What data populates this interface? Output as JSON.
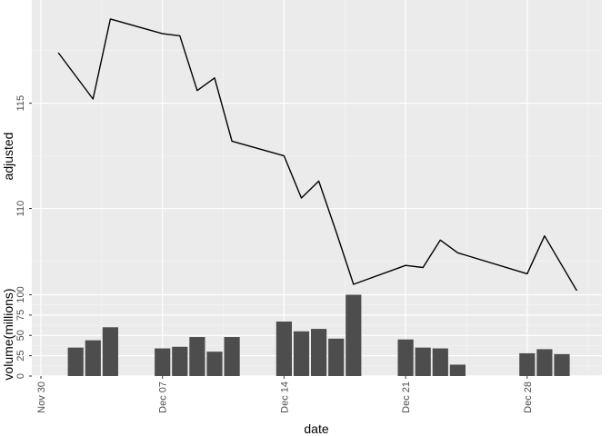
{
  "chart_data": [
    {
      "type": "line",
      "xlabel": "",
      "ylabel": "adjusted",
      "xlim": [
        "2020-11-30",
        "2020-12-31"
      ],
      "ylim": [
        106.1,
        119.9
      ],
      "yticks": [
        110,
        115
      ],
      "series": [
        {
          "x": [
            "2020-12-01",
            "2020-12-03",
            "2020-12-04",
            "2020-12-07",
            "2020-12-08",
            "2020-12-09",
            "2020-12-10",
            "2020-12-11",
            "2020-12-14",
            "2020-12-15",
            "2020-12-16",
            "2020-12-17",
            "2020-12-18",
            "2020-12-21",
            "2020-12-22",
            "2020-12-23",
            "2020-12-24",
            "2020-12-28",
            "2020-12-29",
            "2020-12-30",
            "2020-12-31"
          ],
          "y": [
            117.4,
            115.2,
            119.0,
            118.3,
            118.2,
            115.6,
            116.2,
            113.2,
            112.5,
            110.5,
            111.3,
            108.9,
            106.4,
            107.3,
            107.2,
            108.5,
            107.9,
            106.9,
            108.7,
            107.3,
            105.9
          ]
        }
      ],
      "grid": true,
      "line_color": "#000000"
    },
    {
      "type": "bar",
      "xlabel": "date",
      "ylabel": "volume(millions)",
      "xlim": [
        "2020-11-30",
        "2020-12-31"
      ],
      "ylim": [
        0,
        105
      ],
      "yticks": [
        0,
        25,
        50,
        75,
        100
      ],
      "xticks": [
        {
          "date": "2020-11-30",
          "label": "Nov 30"
        },
        {
          "date": "2020-12-07",
          "label": "Dec 07"
        },
        {
          "date": "2020-12-14",
          "label": "Dec 14"
        },
        {
          "date": "2020-12-21",
          "label": "Dec 21"
        },
        {
          "date": "2020-12-28",
          "label": "Dec 28"
        }
      ],
      "x": [
        "2020-12-02",
        "2020-12-03",
        "2020-12-04",
        "2020-12-07",
        "2020-12-08",
        "2020-12-09",
        "2020-12-10",
        "2020-12-11",
        "2020-12-14",
        "2020-12-15",
        "2020-12-16",
        "2020-12-17",
        "2020-12-18",
        "2020-12-21",
        "2020-12-22",
        "2020-12-23",
        "2020-12-24",
        "2020-12-28",
        "2020-12-29",
        "2020-12-30"
      ],
      "values": [
        35,
        44,
        60,
        34,
        36,
        48,
        30,
        48,
        67,
        55,
        58,
        46,
        100,
        45,
        35,
        34,
        14,
        28,
        33,
        27
      ],
      "grid": true,
      "bar_color": "#4d4d4d"
    }
  ],
  "colors": {
    "panel": "#ebebeb",
    "grid_major": "#ffffff",
    "grid_minor": "#f5f5f5",
    "tick_text": "#4d4d4d"
  }
}
